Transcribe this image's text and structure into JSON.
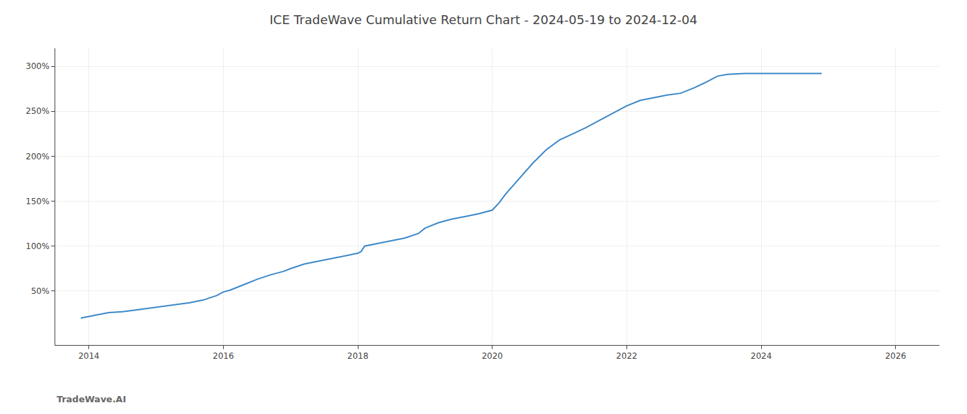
{
  "chart_data": {
    "type": "line",
    "title": "ICE TradeWave Cumulative Return Chart - 2024-05-19 to 2024-12-04",
    "annotations": [
      {
        "text": "TradeWave.AI"
      }
    ],
    "x": [
      2013.88,
      2014.0,
      2014.15,
      2014.3,
      2014.5,
      2014.7,
      2014.9,
      2015.1,
      2015.3,
      2015.5,
      2015.7,
      2015.9,
      2016.0,
      2016.1,
      2016.3,
      2016.5,
      2016.7,
      2016.9,
      2017.0,
      2017.2,
      2017.4,
      2017.6,
      2017.8,
      2018.0,
      2018.05,
      2018.1,
      2018.3,
      2018.5,
      2018.7,
      2018.9,
      2019.0,
      2019.2,
      2019.4,
      2019.6,
      2019.8,
      2020.0,
      2020.1,
      2020.2,
      2020.4,
      2020.6,
      2020.8,
      2021.0,
      2021.2,
      2021.4,
      2021.6,
      2021.8,
      2022.0,
      2022.2,
      2022.4,
      2022.6,
      2022.8,
      2023.0,
      2023.2,
      2023.35,
      2023.5,
      2023.75,
      2024.0,
      2024.3,
      2024.9
    ],
    "values": [
      20,
      22,
      24,
      26,
      27,
      29,
      31,
      33,
      35,
      37,
      40,
      45,
      49,
      51,
      57,
      63,
      68,
      72,
      75,
      80,
      83,
      86,
      89,
      92,
      94,
      100,
      103,
      106,
      109,
      114,
      120,
      126,
      130,
      133,
      136,
      140,
      148,
      158,
      175,
      192,
      207,
      218,
      225,
      232,
      240,
      248,
      256,
      262,
      265,
      268,
      270,
      276,
      283,
      289,
      291,
      292,
      292,
      292,
      292
    ],
    "color": "#3a87c8",
    "xlim": [
      2013.5,
      2026.65
    ],
    "xticks": [
      2014,
      2016,
      2018,
      2020,
      2022,
      2024,
      2026
    ],
    "ylim": [
      -10,
      320
    ],
    "yticks": [
      {
        "value": 50,
        "label": "50%"
      },
      {
        "value": 100,
        "label": "100%"
      },
      {
        "value": 150,
        "label": "150%"
      },
      {
        "value": 200,
        "label": "200%"
      },
      {
        "value": 250,
        "label": "250%"
      },
      {
        "value": 300,
        "label": "300%"
      }
    ],
    "grid": true
  }
}
